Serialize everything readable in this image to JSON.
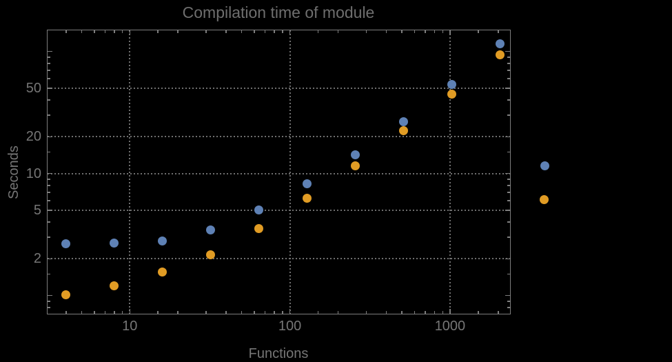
{
  "title": "Compilation time of module",
  "axes": {
    "x_label": "Functions",
    "y_label": "Seconds"
  },
  "colors": {
    "background": "#000000",
    "frame": "#7e7e7e",
    "gridlines": "#6f6f6f",
    "text": "#767676",
    "series_1": "#5E81B5",
    "series_2": "#E19C24"
  },
  "chart_data": {
    "type": "scatter",
    "title": "Compilation time of module",
    "xlabel": "Functions",
    "ylabel": "Seconds",
    "x_scale": "log",
    "y_scale": "log",
    "xlim": [
      3.05,
      2370
    ],
    "ylim": [
      0.71,
      150
    ],
    "grid": "dotted, at labeled major ticks",
    "legend_position": "outside-right, markers only (no visible text)",
    "x": [
      4,
      8,
      16,
      32,
      64,
      128,
      256,
      512,
      1024,
      2048
    ],
    "series": [
      {
        "name": "series-1-blue",
        "color": "#5E81B5",
        "values": [
          2.65,
          2.7,
          2.8,
          3.45,
          5.0,
          8.2,
          14.2,
          26.5,
          54,
          116
        ]
      },
      {
        "name": "series-2-orange",
        "color": "#E19C24",
        "values": [
          1.02,
          1.2,
          1.55,
          2.15,
          3.55,
          6.3,
          11.6,
          22.5,
          45,
          94
        ]
      }
    ],
    "x_ticks_labeled": [
      10,
      100,
      1000
    ],
    "x_ticks_major_unlabeled": [],
    "x_ticks_minor": [
      4,
      5,
      6,
      7,
      8,
      9,
      15,
      20,
      30,
      40,
      50,
      60,
      70,
      80,
      90,
      150,
      200,
      300,
      400,
      500,
      600,
      700,
      800,
      900,
      1500,
      2000
    ],
    "y_ticks_labeled": [
      2,
      5,
      10,
      20,
      50
    ],
    "y_ticks_major_unlabeled": [
      1,
      100
    ],
    "y_ticks_minor": [
      0.8,
      0.9,
      1.5,
      3,
      4,
      6,
      7,
      8,
      9,
      15,
      30,
      40,
      60,
      70,
      80,
      90
    ],
    "grid_x": [
      10,
      100,
      1000
    ],
    "grid_y": [
      2,
      5,
      10,
      20,
      50
    ]
  },
  "legend": {
    "markers": [
      {
        "series": "series-1-blue",
        "color": "#5E81B5"
      },
      {
        "series": "series-2-orange",
        "color": "#E19C24"
      }
    ]
  }
}
